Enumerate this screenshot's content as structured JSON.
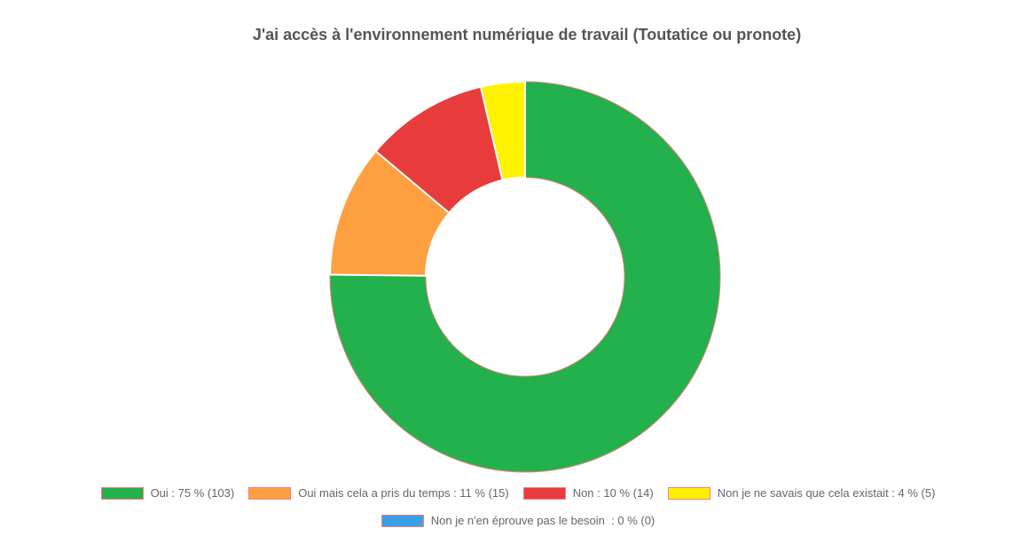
{
  "chart_data": {
    "type": "doughnut",
    "title": "J'ai accès à l'environnement numérique de travail (Toutatice ou pronote)",
    "categories": [
      "Oui : 75 % (103)",
      "Oui mais cela a pris du temps : 11 % (15)",
      "Non : 10 % (14)",
      "Non je ne savais que cela existait : 4 % (5)",
      "Non je n'en éprouve pas le besoin  : 0 % (0)"
    ],
    "values": [
      103,
      15,
      14,
      5,
      0
    ],
    "colors": [
      "#22b14c",
      "#ffa040",
      "#e83c3c",
      "#fff200",
      "#3aa0e8"
    ],
    "legend": "bottom"
  }
}
